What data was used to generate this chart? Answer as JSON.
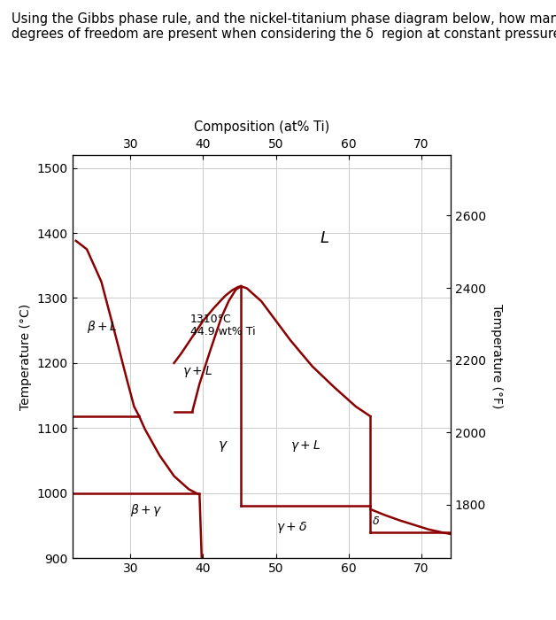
{
  "title_text": "Using the Gibbs phase rule, and the nickel-titanium phase diagram below, how many\ndegrees of freedom are present when considering the δ  region at constant pressure?",
  "xlabel_top": "Composition (at% Ti)",
  "ylabel_left": "Temperature (°C)",
  "ylabel_right": "Temperature (°F)",
  "xlim": [
    22,
    74
  ],
  "ylim": [
    900,
    1520
  ],
  "xticks": [
    30,
    40,
    50,
    60,
    70
  ],
  "yticks_left": [
    900,
    1000,
    1100,
    1200,
    1300,
    1400,
    1500
  ],
  "right_ticks_c": [
    982.2,
    1093.3,
    1204.4,
    1315.6,
    1426.7
  ],
  "right_ticks_f": [
    1800,
    2000,
    2200,
    2400,
    2600
  ],
  "line_color": "#8B0000",
  "bg_color": "#ffffff",
  "grid_color": "#cccccc",
  "annotation_1310": "1310°C",
  "annotation_449": "44.9 wt% Ti"
}
